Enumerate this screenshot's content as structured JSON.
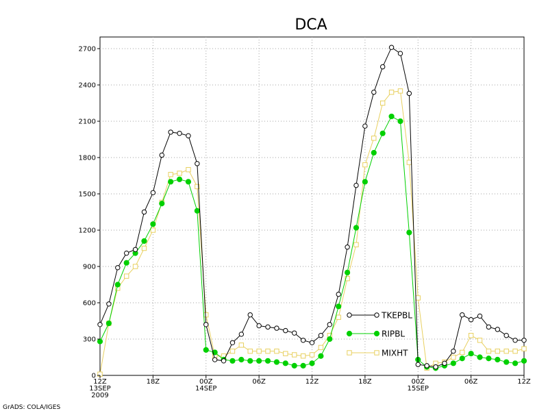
{
  "chart_data": {
    "type": "line",
    "title": "DCA",
    "credit": "GrADS: COLA/IGES",
    "ylim": [
      0,
      2700
    ],
    "yticks": [
      0,
      300,
      600,
      900,
      1200,
      1500,
      1800,
      2100,
      2400,
      2700
    ],
    "xlim": [
      0,
      48
    ],
    "xticks": [
      {
        "x": 0,
        "lines": [
          "12Z",
          "13SEP",
          "2009"
        ]
      },
      {
        "x": 6,
        "lines": [
          "18Z"
        ]
      },
      {
        "x": 12,
        "lines": [
          "00Z",
          "14SEP"
        ]
      },
      {
        "x": 18,
        "lines": [
          "06Z"
        ]
      },
      {
        "x": 24,
        "lines": [
          "12Z"
        ]
      },
      {
        "x": 30,
        "lines": [
          "18Z"
        ]
      },
      {
        "x": 36,
        "lines": [
          "00Z",
          "15SEP"
        ]
      },
      {
        "x": 42,
        "lines": [
          "06Z"
        ]
      },
      {
        "x": 48,
        "lines": [
          "12Z"
        ]
      }
    ],
    "grid": true,
    "legend_position": "lower-center",
    "series": [
      {
        "name": "TKEPBL",
        "color": "#000000",
        "marker": "open-circle",
        "x": [
          0,
          1,
          2,
          3,
          4,
          5,
          6,
          7,
          8,
          9,
          10,
          11,
          12,
          13,
          14,
          15,
          16,
          17,
          18,
          19,
          20,
          21,
          22,
          23,
          24,
          25,
          26,
          27,
          28,
          29,
          30,
          31,
          32,
          33,
          34,
          35,
          36,
          37,
          38,
          39,
          40,
          41,
          42,
          43,
          44,
          45,
          46,
          47,
          48
        ],
        "values": [
          420,
          590,
          890,
          1010,
          1040,
          1350,
          1510,
          1820,
          2010,
          2000,
          1980,
          1750,
          420,
          130,
          120,
          270,
          340,
          500,
          410,
          400,
          390,
          370,
          350,
          290,
          270,
          330,
          420,
          670,
          1060,
          1570,
          2060,
          2340,
          2550,
          2710,
          2660,
          2330,
          90,
          80,
          70,
          100,
          200,
          500,
          460,
          490,
          400,
          380,
          330,
          290,
          290
        ]
      },
      {
        "name": "RIPBL",
        "color": "#00d000",
        "marker": "filled-circle",
        "x": [
          0,
          1,
          2,
          3,
          4,
          5,
          6,
          7,
          8,
          9,
          10,
          11,
          12,
          13,
          14,
          15,
          16,
          17,
          18,
          19,
          20,
          21,
          22,
          23,
          24,
          25,
          26,
          27,
          28,
          29,
          30,
          31,
          32,
          33,
          34,
          35,
          36,
          37,
          38,
          39,
          40,
          41,
          42,
          43,
          44,
          45,
          46,
          47,
          48
        ],
        "values": [
          280,
          430,
          750,
          930,
          1010,
          1110,
          1250,
          1420,
          1600,
          1620,
          1600,
          1360,
          210,
          190,
          130,
          120,
          130,
          120,
          120,
          120,
          110,
          100,
          80,
          80,
          100,
          160,
          300,
          570,
          850,
          1220,
          1600,
          1840,
          2000,
          2140,
          2100,
          1180,
          130,
          70,
          60,
          80,
          100,
          140,
          180,
          150,
          140,
          130,
          110,
          100,
          120
        ]
      },
      {
        "name": "MIXHT",
        "color": "#e8d060",
        "marker": "open-square",
        "x": [
          0,
          1,
          2,
          3,
          4,
          5,
          6,
          7,
          8,
          9,
          10,
          11,
          12,
          13,
          14,
          15,
          16,
          17,
          18,
          19,
          20,
          21,
          22,
          23,
          24,
          25,
          26,
          27,
          28,
          29,
          30,
          31,
          32,
          33,
          34,
          35,
          36,
          37,
          38,
          39,
          40,
          41,
          42,
          43,
          44,
          45,
          46,
          47,
          48
        ],
        "values": [
          10,
          430,
          720,
          820,
          900,
          1050,
          1200,
          1430,
          1660,
          1670,
          1700,
          1560,
          500,
          160,
          160,
          200,
          250,
          200,
          200,
          200,
          200,
          180,
          170,
          160,
          170,
          230,
          330,
          480,
          800,
          1080,
          1740,
          1960,
          2250,
          2340,
          2350,
          1760,
          640,
          60,
          100,
          110,
          150,
          190,
          330,
          290,
          200,
          200,
          200,
          200,
          220
        ]
      }
    ]
  }
}
